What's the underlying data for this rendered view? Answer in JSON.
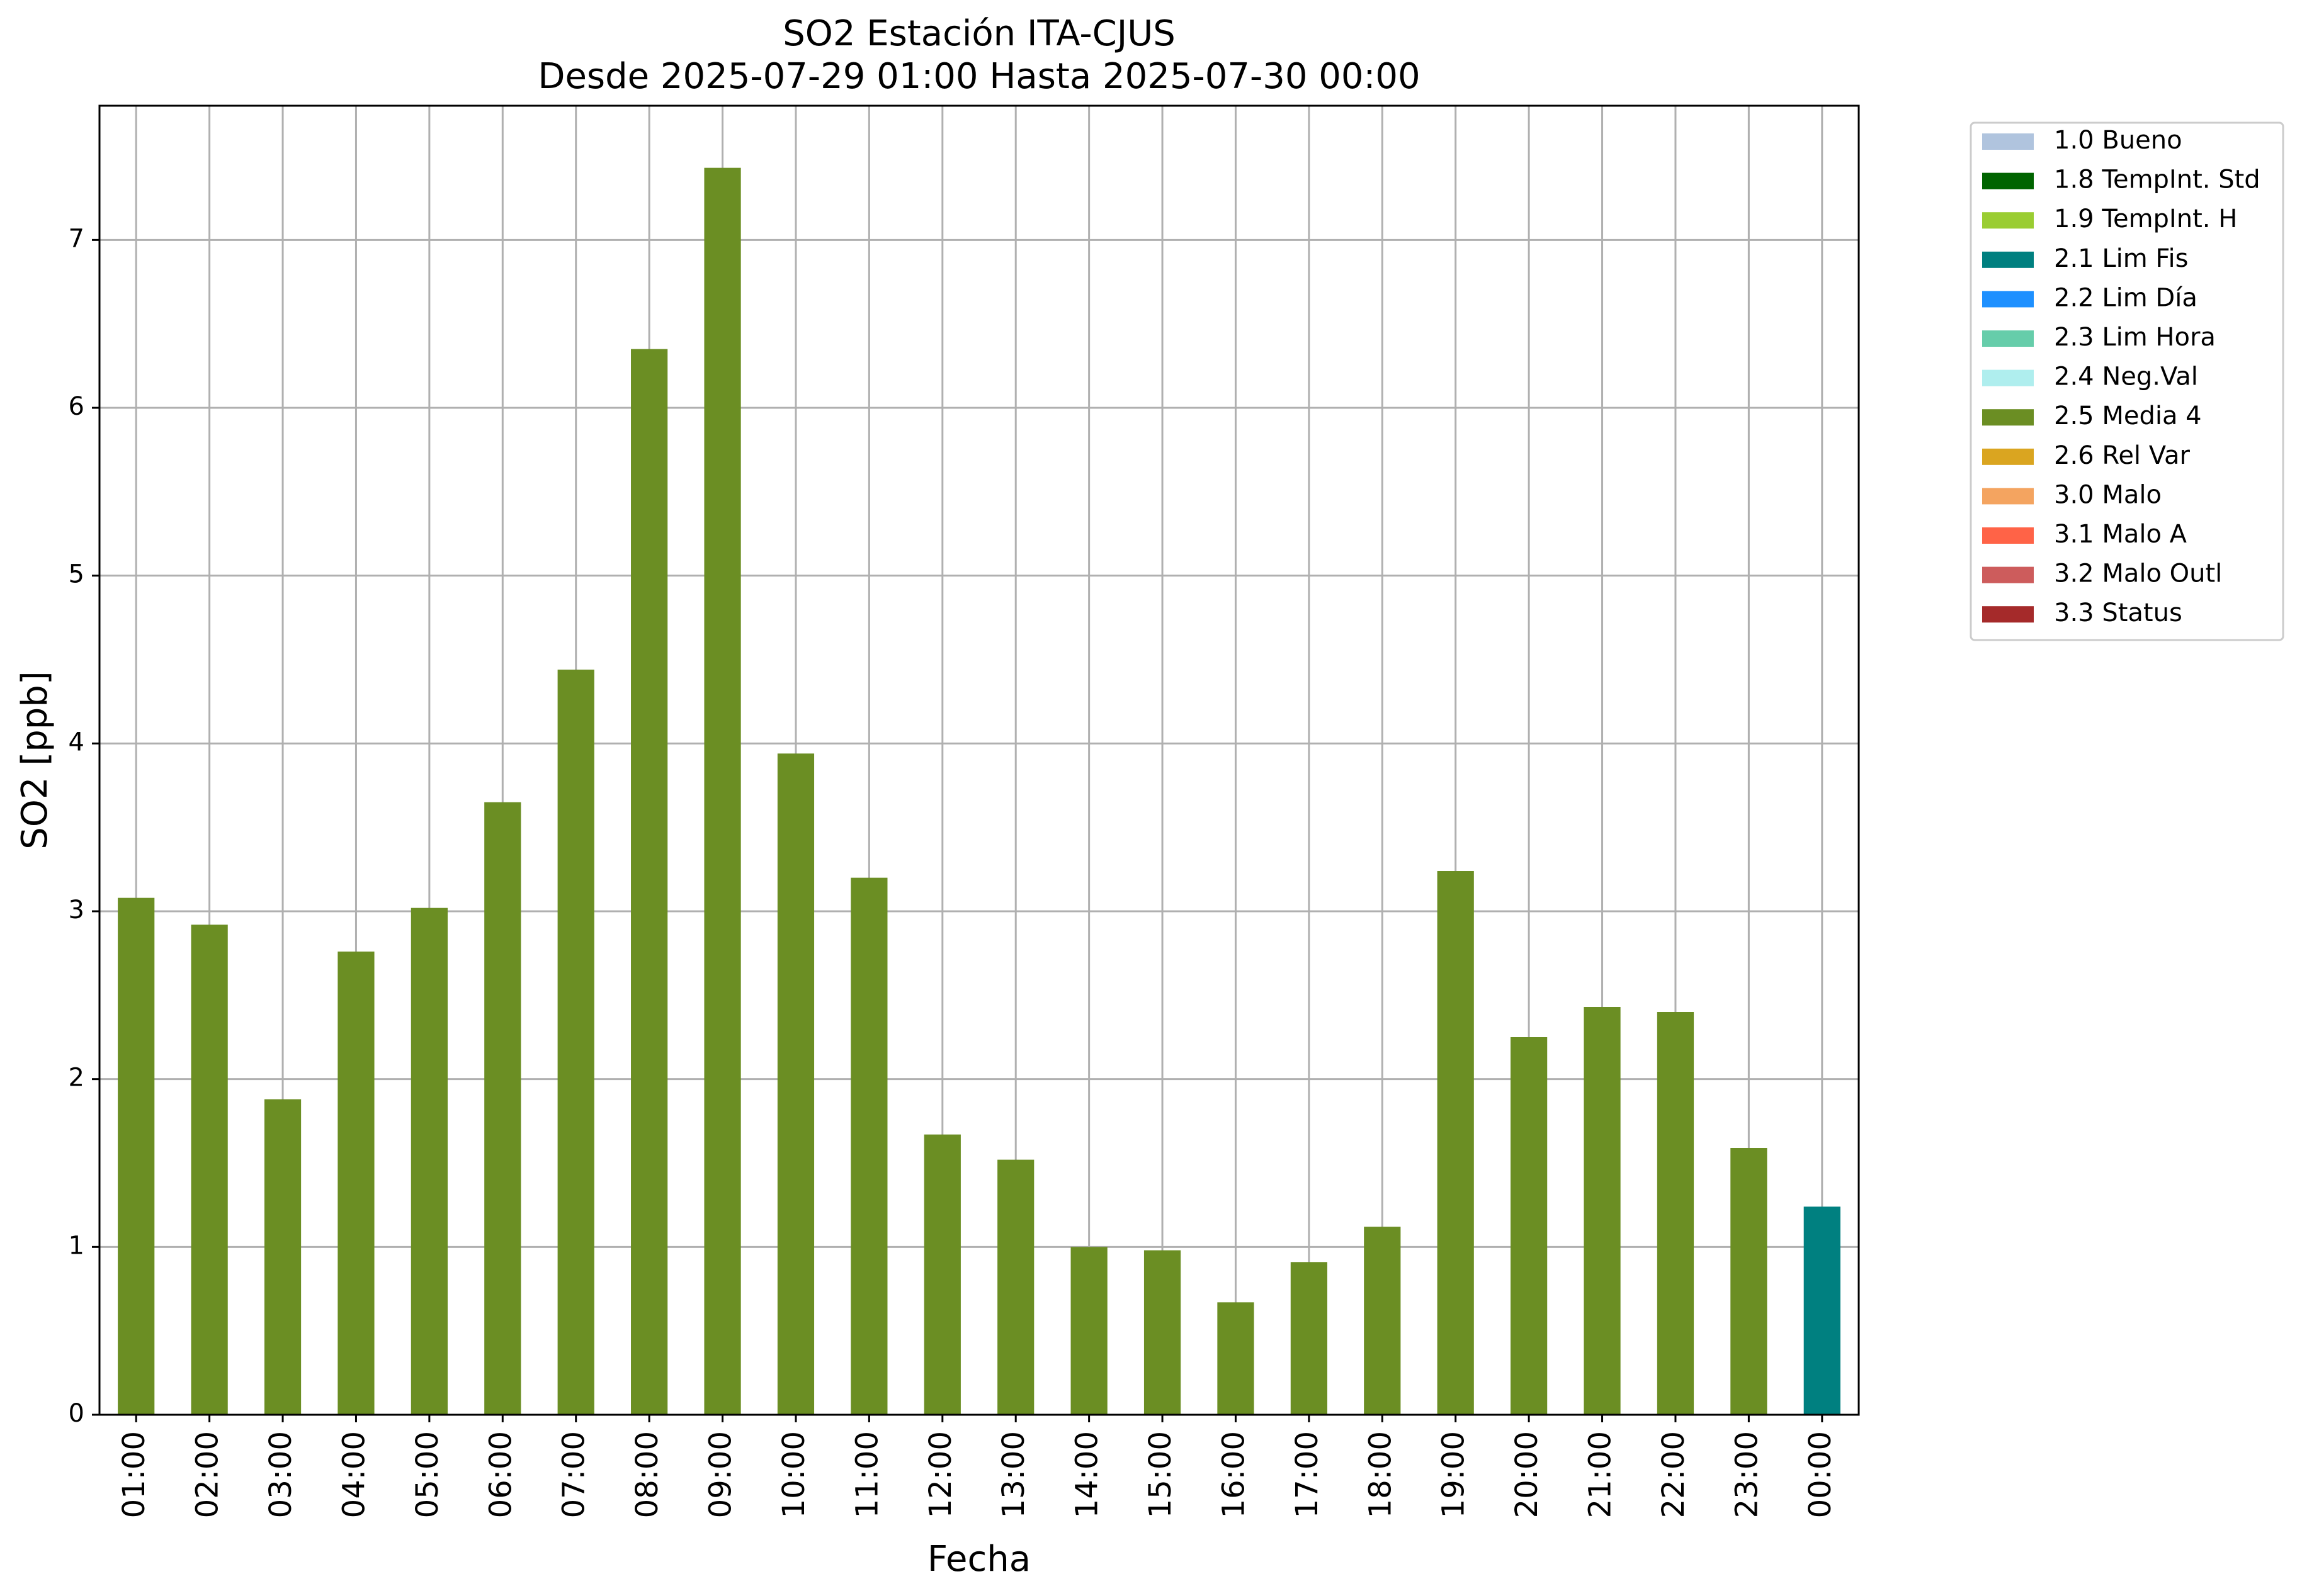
{
  "chart_data": {
    "type": "bar",
    "title": "SO2 Estación ITA-CJUS",
    "subtitle": "Desde 2025-07-29 01:00 Hasta 2025-07-30 00:00",
    "xlabel": "Fecha",
    "ylabel": "SO2 [ppb]",
    "ylim": [
      0,
      7.8
    ],
    "yticks": [
      "0",
      "1",
      "2",
      "3",
      "4",
      "5",
      "6",
      "7"
    ],
    "grid": true,
    "legend_position": "outside-right",
    "categories": [
      "01:00",
      "02:00",
      "03:00",
      "04:00",
      "05:00",
      "06:00",
      "07:00",
      "08:00",
      "09:00",
      "10:00",
      "11:00",
      "12:00",
      "13:00",
      "14:00",
      "15:00",
      "16:00",
      "17:00",
      "18:00",
      "19:00",
      "20:00",
      "21:00",
      "22:00",
      "23:00",
      "00:00"
    ],
    "values": [
      3.08,
      2.92,
      1.88,
      2.76,
      3.02,
      3.65,
      4.44,
      6.35,
      7.43,
      3.94,
      3.2,
      1.67,
      1.52,
      1.0,
      0.98,
      0.67,
      0.91,
      1.12,
      3.24,
      2.25,
      2.43,
      2.4,
      1.59,
      1.24
    ],
    "bar_flags": [
      "2.5 Media 4",
      "2.5 Media 4",
      "2.5 Media 4",
      "2.5 Media 4",
      "2.5 Media 4",
      "2.5 Media 4",
      "2.5 Media 4",
      "2.5 Media 4",
      "2.5 Media 4",
      "2.5 Media 4",
      "2.5 Media 4",
      "2.5 Media 4",
      "2.5 Media 4",
      "2.5 Media 4",
      "2.5 Media 4",
      "2.5 Media 4",
      "2.5 Media 4",
      "2.5 Media 4",
      "2.5 Media 4",
      "2.5 Media 4",
      "2.5 Media 4",
      "2.5 Media 4",
      "2.5 Media 4",
      "2.1 Lim Fis"
    ],
    "legend": [
      {
        "label": "1.0 Bueno",
        "color": "#b0c4de"
      },
      {
        "label": "1.8 TempInt. Std",
        "color": "#006400"
      },
      {
        "label": "1.9 TempInt. H",
        "color": "#9acd32"
      },
      {
        "label": "2.1 Lim Fis",
        "color": "#008080"
      },
      {
        "label": "2.2 Lim Día",
        "color": "#1e90ff"
      },
      {
        "label": "2.3 Lim Hora",
        "color": "#66cdaa"
      },
      {
        "label": "2.4 Neg.Val",
        "color": "#afeeee"
      },
      {
        "label": "2.5 Media 4",
        "color": "#6b8e23"
      },
      {
        "label": "2.6 Rel Var",
        "color": "#daa520"
      },
      {
        "label": "3.0 Malo",
        "color": "#f4a460"
      },
      {
        "label": "3.1 Malo A",
        "color": "#ff6347"
      },
      {
        "label": "3.2 Malo Outl",
        "color": "#cd5c5c"
      },
      {
        "label": "3.3 Status",
        "color": "#a52a2a"
      }
    ]
  }
}
